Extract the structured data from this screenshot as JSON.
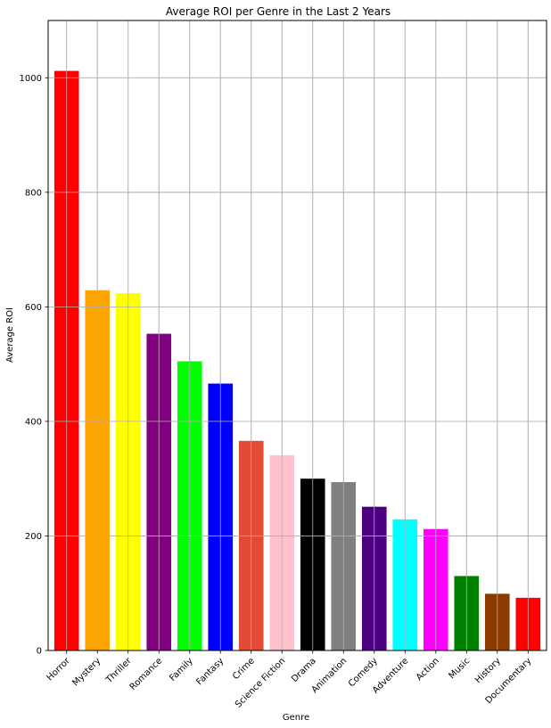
{
  "chart_data": {
    "type": "bar",
    "title": "Average ROI per Genre in the Last 2 Years",
    "xlabel": "Genre",
    "ylabel": "Average ROI",
    "ylim": [
      0,
      1100
    ],
    "yticks": [
      0,
      200,
      400,
      600,
      800,
      1000
    ],
    "grid": true,
    "categories": [
      "Horror",
      "Mystery",
      "Thriller",
      "Romance",
      "Family",
      "Fantasy",
      "Crime",
      "Science Fiction",
      "Drama",
      "Animation",
      "Comedy",
      "Adventure",
      "Action",
      "Music",
      "History",
      "Documentary"
    ],
    "values": [
      1012,
      629,
      624,
      553,
      505,
      466,
      366,
      341,
      300,
      294,
      251,
      229,
      212,
      130,
      99,
      92
    ],
    "colors": [
      "#ff0000",
      "#ffa500",
      "#ffff00",
      "#800080",
      "#00ff00",
      "#0000ff",
      "#e34a33",
      "#ffc0cb",
      "#000000",
      "#808080",
      "#4b0082",
      "#00ffff",
      "#ff00ff",
      "#008000",
      "#8b3a00",
      "#ff0000"
    ]
  }
}
